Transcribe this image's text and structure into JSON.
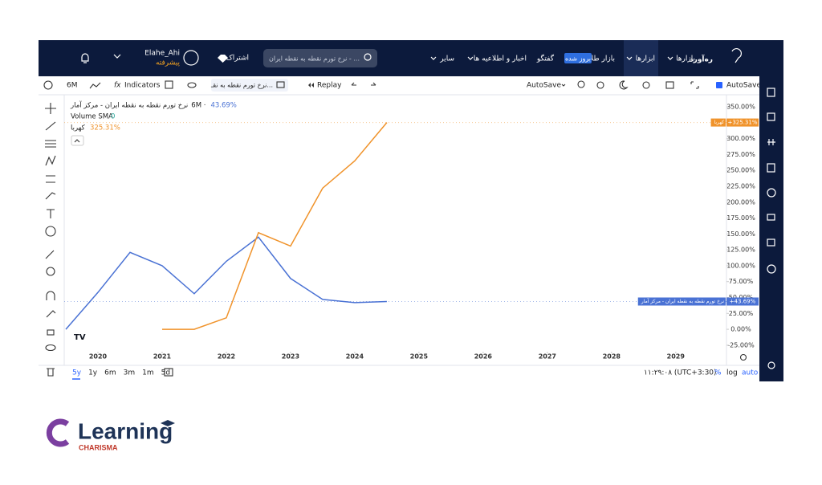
{
  "ui": {
    "nav": {
      "logo": "ره‌آورد",
      "markets": "بازارها",
      "tools": "ابزارها",
      "gold_market": "بازار طلا",
      "badge": "بروز شده",
      "chat": "گفتگو",
      "news": "اخبار و اطلاعیه ها",
      "other": "سایر",
      "search": "نرخ تورم نقطه به نقطه ایران - ...",
      "subscribe": "اشتراک",
      "user": "Elahe_Ahi",
      "plan": "پیشرفته"
    },
    "toolbar": {
      "interval": "6M",
      "indicators": "Indicators",
      "symbol": "نرخ تورم نقطه به نقـ...",
      "replay": "Replay",
      "autosave_menu": "AutoSave",
      "autosave": "AutoSave"
    },
    "legend": {
      "interval": "6M ·",
      "main_value": "43.69%",
      "volume": "Volume SMA",
      "volume_value": "0",
      "second_value": "325.31%"
    },
    "bottom": {
      "ranges": [
        "5y",
        "1y",
        "6m",
        "3m",
        "1m",
        "5d"
      ],
      "time": "۱۱:۲۹:۰۸ (UTC+3:30)",
      "percent": "%",
      "log": "log",
      "auto": "auto"
    }
  },
  "footer": {
    "brand": "Learning",
    "sub": "CHARISMA"
  },
  "chart_data": {
    "type": "line",
    "x": [
      2019.5,
      2020,
      2020.5,
      2021,
      2021.5,
      2022,
      2022.5,
      2023,
      2023.5,
      2024,
      2024.5
    ],
    "series": [
      {
        "name": "نرخ تورم نقطه به نقطه ایران - مرکز آمار",
        "color": "#4a72d4",
        "values": [
          0,
          58,
          121,
          100,
          56,
          107,
          145,
          80,
          47,
          42,
          43.69
        ],
        "value_labels": [
          null,
          null,
          null,
          null,
          null,
          null,
          null,
          null,
          null,
          null,
          "+43.69%"
        ]
      },
      {
        "name": "کهربا",
        "color": "#f0932b",
        "values": [
          null,
          null,
          null,
          0,
          0,
          18,
          152,
          131,
          222,
          265,
          325.31
        ],
        "value_labels": [
          null,
          null,
          null,
          null,
          null,
          null,
          null,
          null,
          null,
          null,
          "+325.31%"
        ]
      }
    ],
    "xlim": [
      2019.475,
      2029.79
    ],
    "xticks": [
      2020,
      2021,
      2022,
      2023,
      2024,
      2025,
      2026,
      2027,
      2028,
      2029
    ],
    "ylim": [
      -34,
      369
    ],
    "yticks": [
      {
        "value": -25,
        "label": "-25.00%"
      },
      {
        "value": 0,
        "label": "0.00%"
      },
      {
        "value": 25,
        "label": "25.00%"
      },
      {
        "value": 50,
        "label": "50.00%"
      },
      {
        "value": 75,
        "label": "75.00%"
      },
      {
        "value": 100,
        "label": "100.00%"
      },
      {
        "value": 125,
        "label": "125.00%"
      },
      {
        "value": 150,
        "label": "150.00%"
      },
      {
        "value": 175,
        "label": "175.00%"
      },
      {
        "value": 200,
        "label": "200.00%"
      },
      {
        "value": 225,
        "label": "225.00%"
      },
      {
        "value": 250,
        "label": "250.00%"
      },
      {
        "value": 275,
        "label": "275.00%"
      },
      {
        "value": 300,
        "label": "300.00%"
      },
      {
        "value": 325,
        "label": "325.00%"
      },
      {
        "value": 350,
        "label": "350.00%"
      }
    ],
    "grid": false
  }
}
